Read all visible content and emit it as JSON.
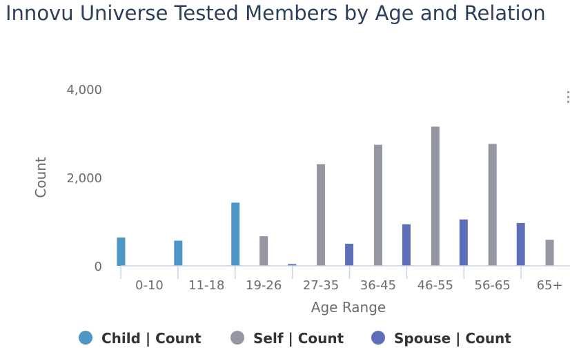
{
  "title": "Innovu Universe Tested Members by Age and Relation",
  "icons": {
    "menu": "ellipsis-vertical-icon"
  },
  "chart_data": {
    "type": "bar",
    "xlabel": "Age Range",
    "ylabel": "Count",
    "ylim": [
      0,
      4000
    ],
    "yticks": [
      "0",
      "2,000",
      "4,000"
    ],
    "grid": false,
    "legend_position": "bottom",
    "categories": [
      "0-10",
      "11-18",
      "19-26",
      "27-35",
      "36-45",
      "46-55",
      "56-65",
      "65+"
    ],
    "series": [
      {
        "name": "Child | Count",
        "color": "#4e96c6",
        "values": [
          640,
          570,
          1430,
          10,
          0,
          0,
          0,
          0
        ]
      },
      {
        "name": "Self | Count",
        "color": "#9497a2",
        "values": [
          0,
          0,
          670,
          2300,
          2740,
          3150,
          2760,
          590
        ]
      },
      {
        "name": "Spouse | Count",
        "color": "#5f6eb8",
        "values": [
          0,
          0,
          40,
          500,
          940,
          1050,
          970,
          220
        ]
      }
    ]
  }
}
